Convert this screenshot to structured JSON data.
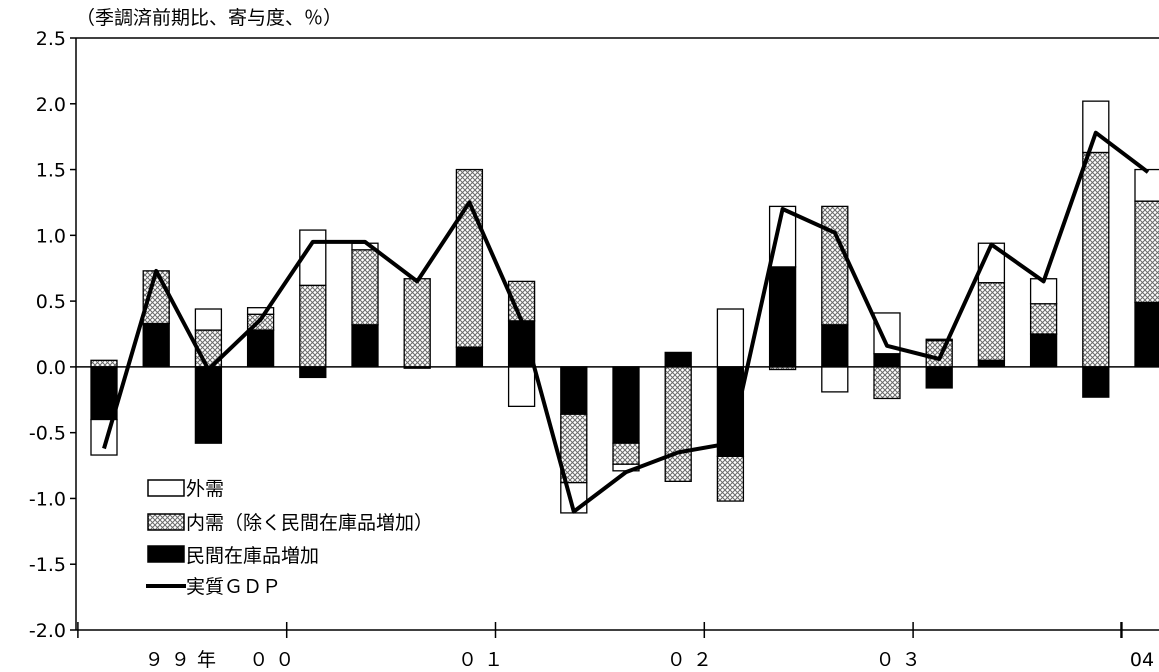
{
  "chart_data": {
    "type": "bar",
    "unit_label": "（季調済前期比、寄与度、％）",
    "ylim": [
      -2.0,
      2.5
    ],
    "y_ticks": [
      "2.5",
      "2.0",
      "1.5",
      "1.0",
      "0.5",
      "0.0",
      "-0.5",
      "-1.0",
      "-1.5",
      "-2.0"
    ],
    "x_axis_labels": [
      {
        "text": "９",
        "slot": 3
      },
      {
        "text": "９",
        "slot": 4
      },
      {
        "text": "年",
        "slot": 5
      },
      {
        "text": "０",
        "slot": 7
      },
      {
        "text": "０",
        "slot": 8
      },
      {
        "text": "０",
        "slot": 15
      },
      {
        "text": "１",
        "slot": 16
      },
      {
        "text": "０",
        "slot": 23
      },
      {
        "text": "２",
        "slot": 24
      },
      {
        "text": "０",
        "slot": 31
      },
      {
        "text": "３",
        "slot": 32
      },
      {
        "text": "04",
        "slot": 36
      }
    ],
    "legend": {
      "position": "bottom-left",
      "items": [
        {
          "key": "external",
          "label": "外需",
          "marker": "box-white"
        },
        {
          "key": "domestic",
          "label": "内需（除く民間在庫品増加）",
          "marker": "box-hatch"
        },
        {
          "key": "inventory",
          "label": "民間在庫品増加",
          "marker": "box-black"
        },
        {
          "key": "gdp",
          "label": "実質ＧＤＰ",
          "marker": "line"
        }
      ]
    },
    "colors": {
      "external": "#ffffff",
      "domestic": "#c8c8c8",
      "inventory": "#000000",
      "gdp": "#000000"
    },
    "series": [
      {
        "key": "inventory",
        "values": [
          -0.4,
          0.33,
          -0.58,
          0.28,
          -0.08,
          0.32,
          -0.01,
          0.15,
          0.35,
          -0.36,
          -0.58,
          0.11,
          -0.68,
          0.76,
          0.32,
          0.1,
          -0.16,
          0.05,
          0.25,
          -0.23,
          0.49
        ]
      },
      {
        "key": "domestic",
        "values": [
          0.05,
          0.4,
          0.28,
          0.12,
          0.62,
          0.57,
          0.67,
          1.35,
          0.3,
          -0.52,
          -0.16,
          -0.87,
          -0.34,
          -0.02,
          0.9,
          -0.24,
          0.2,
          0.59,
          0.23,
          1.63,
          0.77
        ]
      },
      {
        "key": "external",
        "values": [
          -0.27,
          0.0,
          0.16,
          0.05,
          0.42,
          0.05,
          0.0,
          0.0,
          -0.3,
          -0.23,
          -0.05,
          0.0,
          0.44,
          0.46,
          -0.19,
          0.31,
          0.01,
          0.3,
          0.19,
          0.39,
          0.24
        ]
      },
      {
        "key": "gdp",
        "values": [
          -0.62,
          0.73,
          -0.02,
          0.36,
          0.95,
          0.95,
          0.65,
          1.25,
          0.35,
          -1.1,
          -0.8,
          -0.65,
          -0.58,
          1.2,
          1.02,
          0.16,
          0.06,
          0.93,
          0.65,
          1.78,
          1.48
        ]
      }
    ]
  }
}
